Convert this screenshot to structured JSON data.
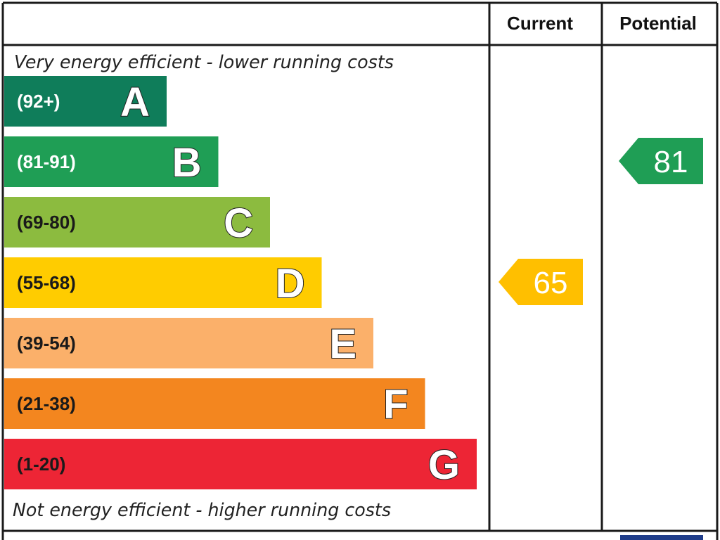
{
  "chart_data": {
    "type": "bar",
    "columns": [
      "Current",
      "Potential"
    ],
    "top_caption": "Very energy efficient - lower running costs",
    "bottom_caption": "Not energy efficient - higher running costs",
    "bands": [
      {
        "letter": "A",
        "range": "(92+)",
        "color": "#0f7d5a",
        "text_color": "#ffffff"
      },
      {
        "letter": "B",
        "range": "(81-91)",
        "color": "#1f9e55",
        "text_color": "#ffffff"
      },
      {
        "letter": "C",
        "range": "(69-80)",
        "color": "#8cbb3f",
        "text_color": "#1a1a1a"
      },
      {
        "letter": "D",
        "range": "(55-68)",
        "color": "#ffcc00",
        "text_color": "#1a1a1a"
      },
      {
        "letter": "E",
        "range": "(39-54)",
        "color": "#fbb06a",
        "text_color": "#1a1a1a"
      },
      {
        "letter": "F",
        "range": "(21-38)",
        "color": "#f3861f",
        "text_color": "#1a1a1a"
      },
      {
        "letter": "G",
        "range": "(1-20)",
        "color": "#ed2535",
        "text_color": "#1a1a1a"
      }
    ],
    "ratings": [
      {
        "column": "Current",
        "value": 65,
        "band": "D",
        "color": "#ffbf00"
      },
      {
        "column": "Potential",
        "value": 81,
        "band": "B",
        "color": "#1f9e55"
      }
    ]
  }
}
